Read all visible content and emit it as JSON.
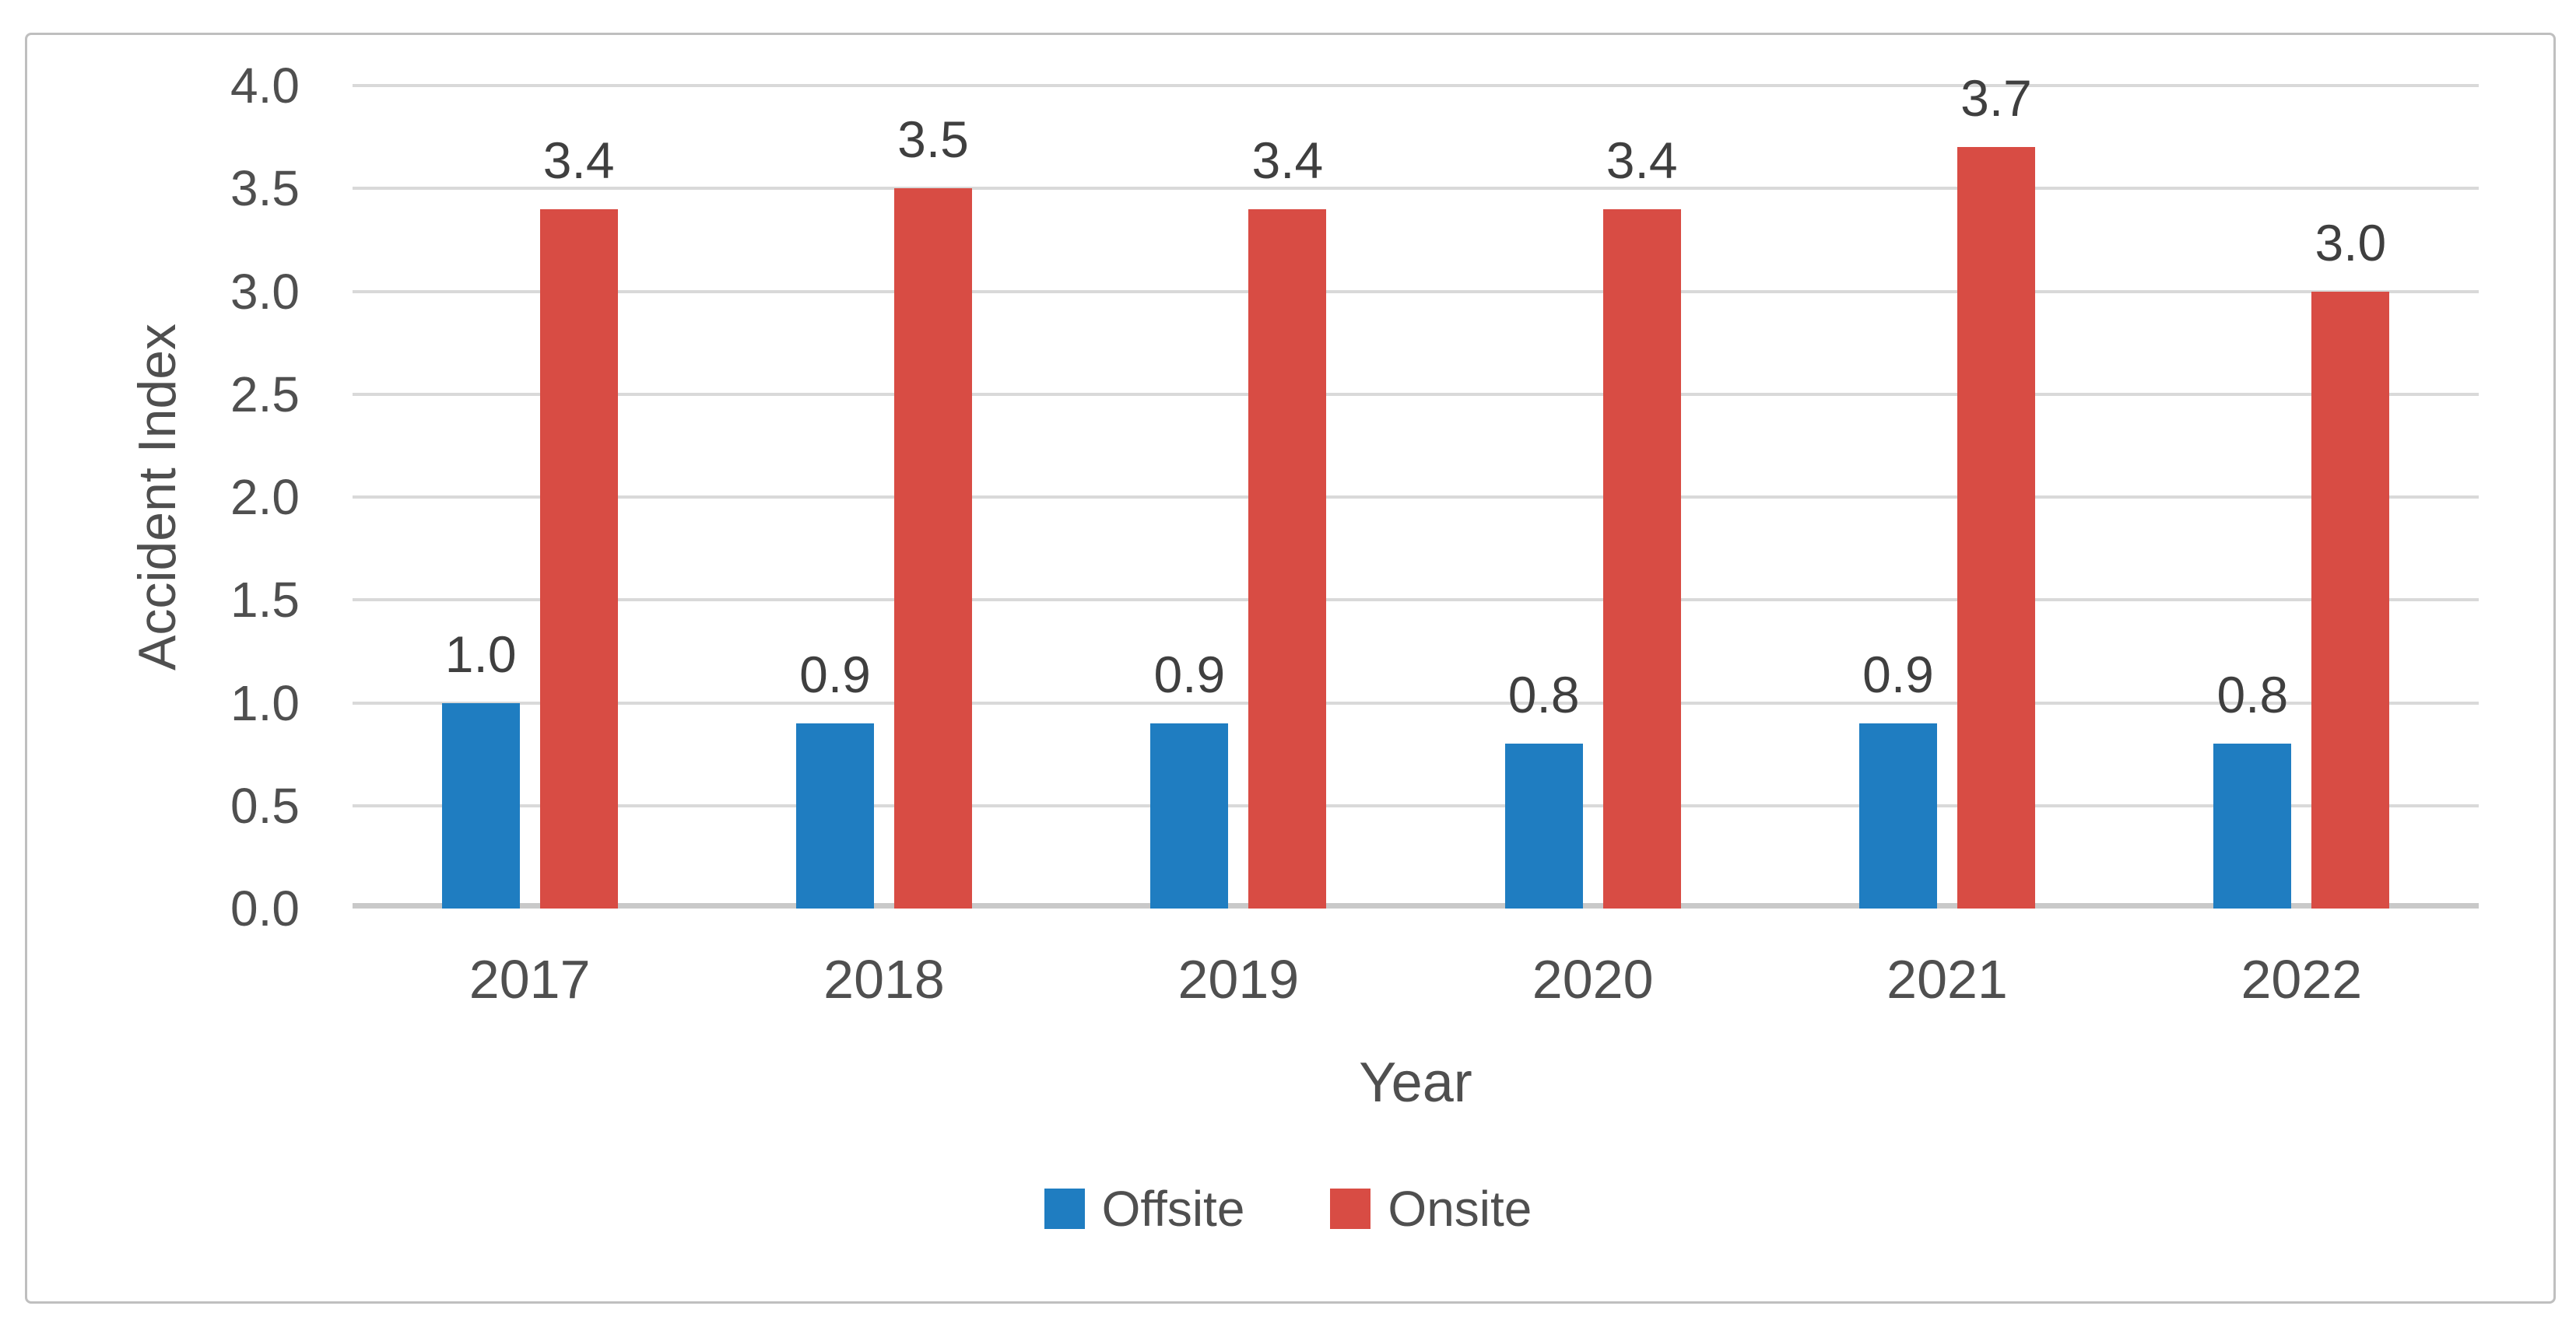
{
  "chart_data": {
    "type": "bar",
    "categories": [
      "2017",
      "2018",
      "2019",
      "2020",
      "2021",
      "2022"
    ],
    "series": [
      {
        "name": "Offsite",
        "color": "#1F7DC1",
        "values": [
          1.0,
          0.9,
          0.9,
          0.8,
          0.9,
          0.8
        ],
        "labels": [
          "1.0",
          "0.9",
          "0.9",
          "0.8",
          "0.9",
          "0.8"
        ]
      },
      {
        "name": "Onsite",
        "color": "#D84C44",
        "values": [
          3.4,
          3.5,
          3.4,
          3.4,
          3.7,
          3.0
        ],
        "labels": [
          "3.4",
          "3.5",
          "3.4",
          "3.4",
          "3.7",
          "3.0"
        ]
      }
    ],
    "xlabel": "Year",
    "ylabel": "Accident Index",
    "ylim": [
      0.0,
      4.0
    ],
    "ytick_step": 0.5,
    "yticks": [
      "0.0",
      "0.5",
      "1.0",
      "1.5",
      "2.0",
      "2.5",
      "3.0",
      "3.5",
      "4.0"
    ],
    "grid": true,
    "legend_position": "bottom",
    "bar_label_position": "outside-end"
  },
  "styles": {
    "offsite_color": "#1F7DC1",
    "onsite_color": "#D84C44",
    "grid_color": "#d9d9d9",
    "baseline_color": "#c9c9c9",
    "axis_text_color": "#4f4f4f",
    "data_label_color": "#3f3f3f",
    "frame_border_color": "#bfbfbf",
    "background": "#ffffff"
  }
}
